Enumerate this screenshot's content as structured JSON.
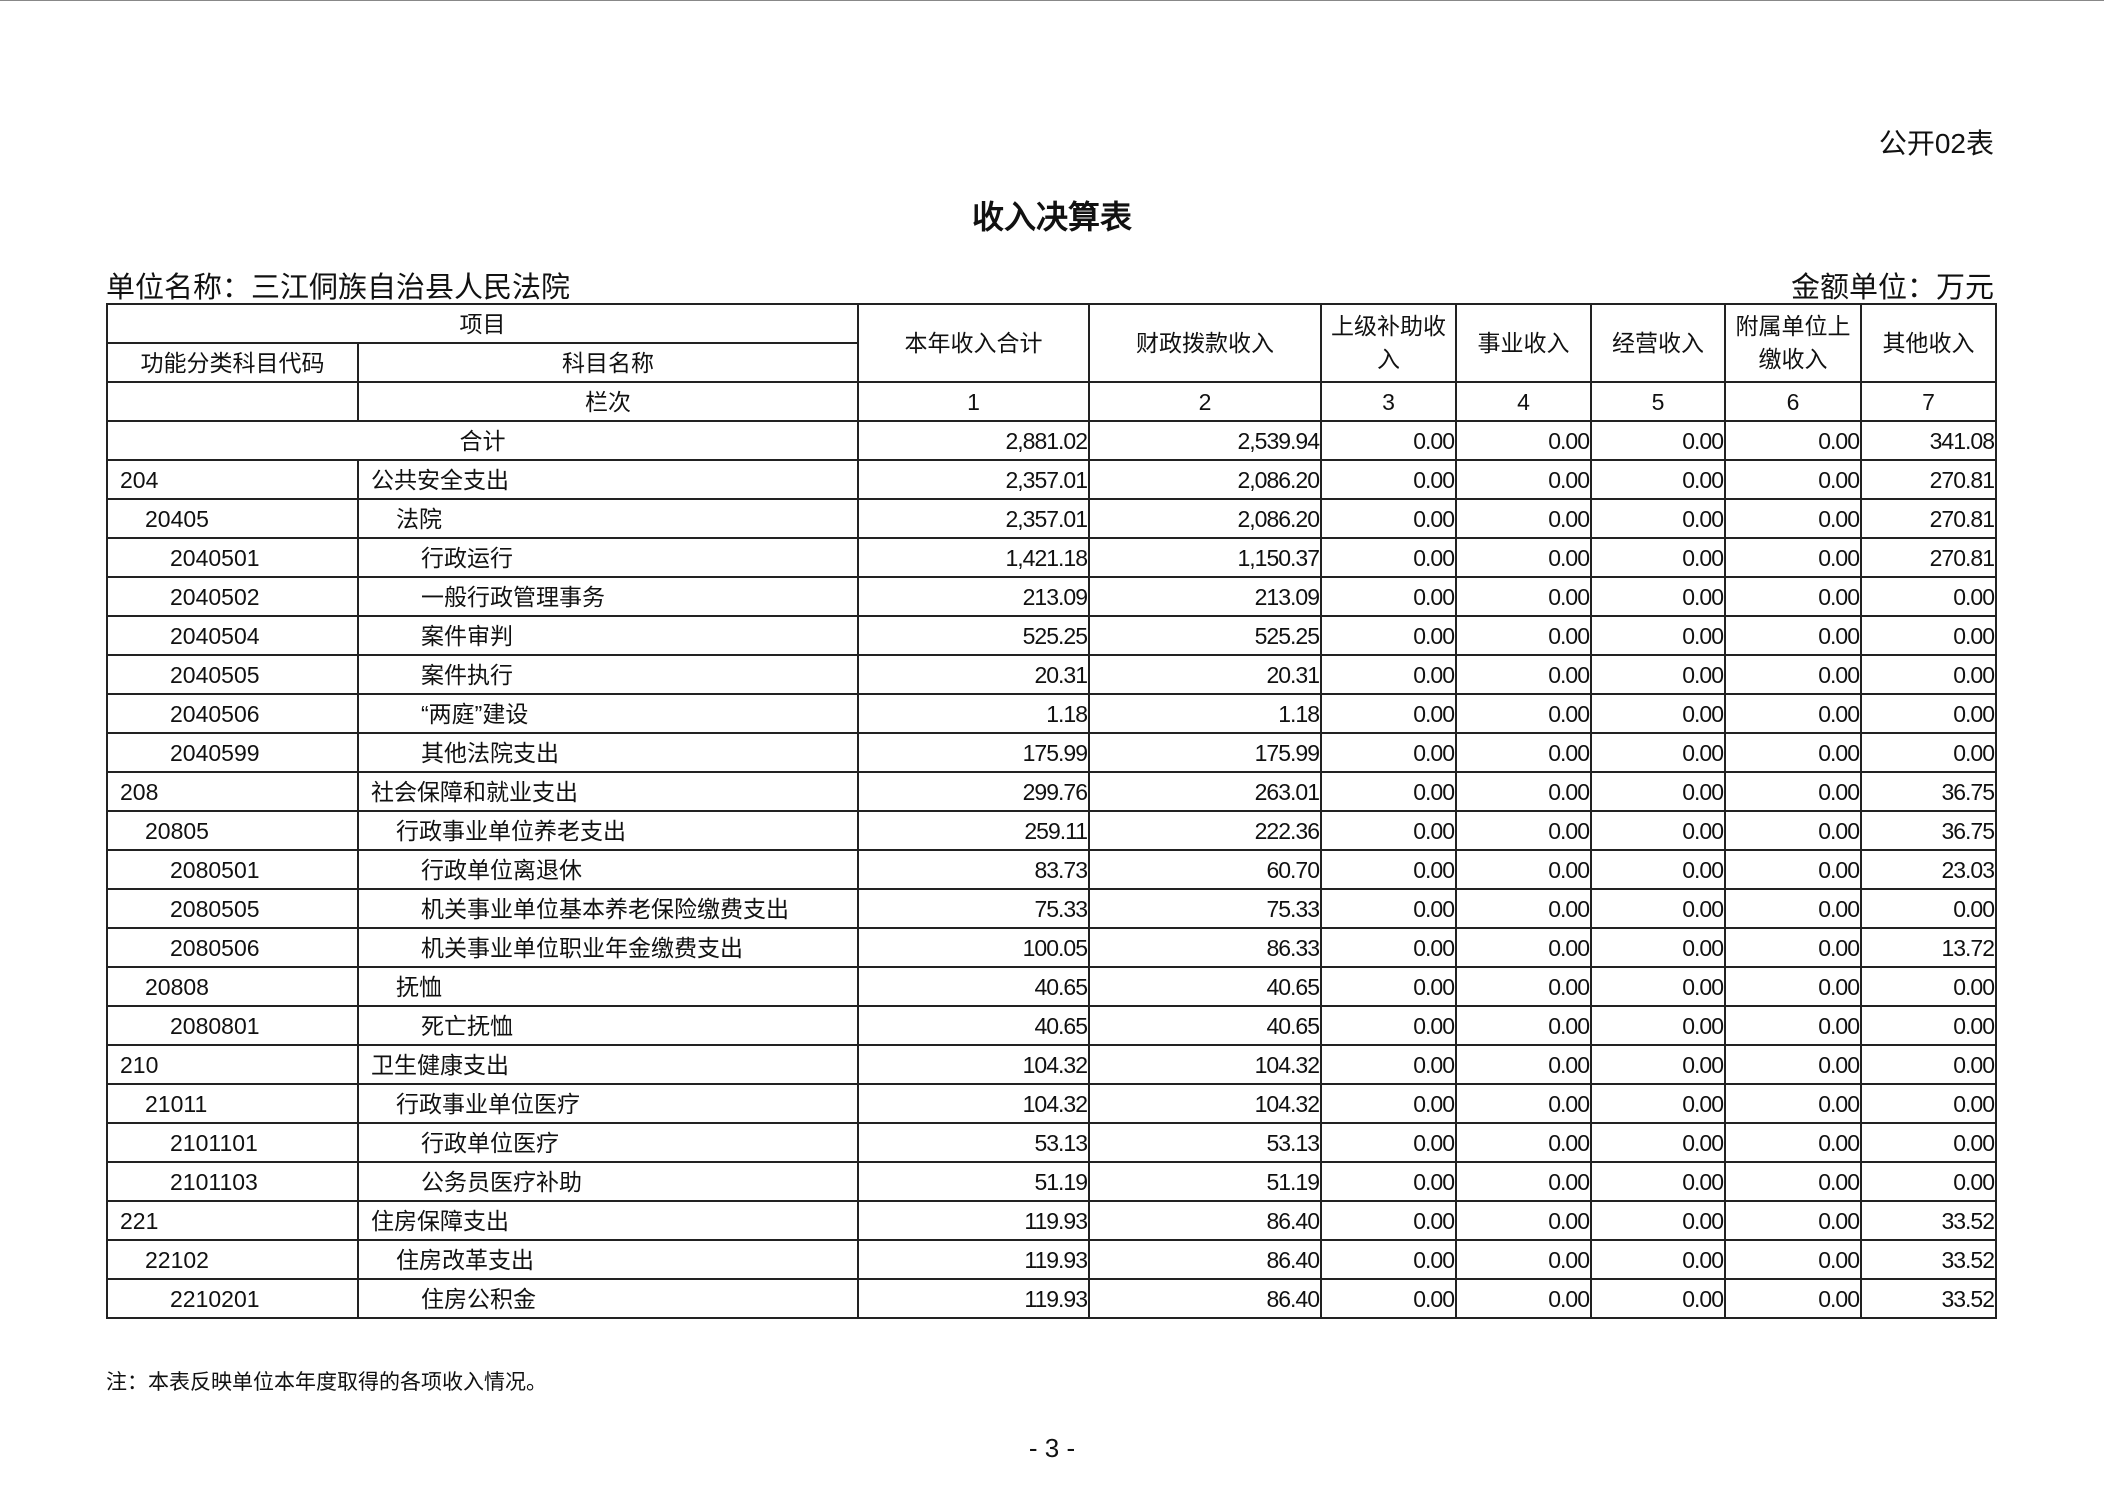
{
  "form_number": "公开02表",
  "title": "收入决算表",
  "unit_name": "单位名称：三江侗族自治县人民法院",
  "money_unit": "金额单位：万元",
  "header": {
    "item": "项目",
    "code": "功能分类科目代码",
    "name": "科目名称",
    "column_order": "栏次",
    "columns": [
      "本年收入合计",
      "财政拨款收入",
      "上级补助收入",
      "事业收入",
      "经营收入",
      "附属单位上缴收入",
      "其他收入"
    ],
    "column_numbers": [
      "1",
      "2",
      "3",
      "4",
      "5",
      "6",
      "7"
    ]
  },
  "total": {
    "label": "合计",
    "values": [
      "2,881.02",
      "2,539.94",
      "0.00",
      "0.00",
      "0.00",
      "0.00",
      "341.08"
    ]
  },
  "rows": [
    {
      "code": "204",
      "name": "公共安全支出",
      "level": 0,
      "values": [
        "2,357.01",
        "2,086.20",
        "0.00",
        "0.00",
        "0.00",
        "0.00",
        "270.81"
      ]
    },
    {
      "code": "20405",
      "name": "法院",
      "level": 1,
      "values": [
        "2,357.01",
        "2,086.20",
        "0.00",
        "0.00",
        "0.00",
        "0.00",
        "270.81"
      ]
    },
    {
      "code": "2040501",
      "name": "行政运行",
      "level": 2,
      "values": [
        "1,421.18",
        "1,150.37",
        "0.00",
        "0.00",
        "0.00",
        "0.00",
        "270.81"
      ]
    },
    {
      "code": "2040502",
      "name": "一般行政管理事务",
      "level": 2,
      "values": [
        "213.09",
        "213.09",
        "0.00",
        "0.00",
        "0.00",
        "0.00",
        "0.00"
      ]
    },
    {
      "code": "2040504",
      "name": "案件审判",
      "level": 2,
      "values": [
        "525.25",
        "525.25",
        "0.00",
        "0.00",
        "0.00",
        "0.00",
        "0.00"
      ]
    },
    {
      "code": "2040505",
      "name": "案件执行",
      "level": 2,
      "values": [
        "20.31",
        "20.31",
        "0.00",
        "0.00",
        "0.00",
        "0.00",
        "0.00"
      ]
    },
    {
      "code": "2040506",
      "name": "“两庭”建设",
      "level": 2,
      "values": [
        "1.18",
        "1.18",
        "0.00",
        "0.00",
        "0.00",
        "0.00",
        "0.00"
      ]
    },
    {
      "code": "2040599",
      "name": "其他法院支出",
      "level": 2,
      "values": [
        "175.99",
        "175.99",
        "0.00",
        "0.00",
        "0.00",
        "0.00",
        "0.00"
      ]
    },
    {
      "code": "208",
      "name": "社会保障和就业支出",
      "level": 0,
      "values": [
        "299.76",
        "263.01",
        "0.00",
        "0.00",
        "0.00",
        "0.00",
        "36.75"
      ]
    },
    {
      "code": "20805",
      "name": "行政事业单位养老支出",
      "level": 1,
      "values": [
        "259.11",
        "222.36",
        "0.00",
        "0.00",
        "0.00",
        "0.00",
        "36.75"
      ]
    },
    {
      "code": "2080501",
      "name": "行政单位离退休",
      "level": 2,
      "values": [
        "83.73",
        "60.70",
        "0.00",
        "0.00",
        "0.00",
        "0.00",
        "23.03"
      ]
    },
    {
      "code": "2080505",
      "name": "机关事业单位基本养老保险缴费支出",
      "level": 2,
      "values": [
        "75.33",
        "75.33",
        "0.00",
        "0.00",
        "0.00",
        "0.00",
        "0.00"
      ]
    },
    {
      "code": "2080506",
      "name": "机关事业单位职业年金缴费支出",
      "level": 2,
      "values": [
        "100.05",
        "86.33",
        "0.00",
        "0.00",
        "0.00",
        "0.00",
        "13.72"
      ]
    },
    {
      "code": "20808",
      "name": "抚恤",
      "level": 1,
      "values": [
        "40.65",
        "40.65",
        "0.00",
        "0.00",
        "0.00",
        "0.00",
        "0.00"
      ]
    },
    {
      "code": "2080801",
      "name": "死亡抚恤",
      "level": 2,
      "values": [
        "40.65",
        "40.65",
        "0.00",
        "0.00",
        "0.00",
        "0.00",
        "0.00"
      ]
    },
    {
      "code": "210",
      "name": "卫生健康支出",
      "level": 0,
      "values": [
        "104.32",
        "104.32",
        "0.00",
        "0.00",
        "0.00",
        "0.00",
        "0.00"
      ]
    },
    {
      "code": "21011",
      "name": "行政事业单位医疗",
      "level": 1,
      "values": [
        "104.32",
        "104.32",
        "0.00",
        "0.00",
        "0.00",
        "0.00",
        "0.00"
      ]
    },
    {
      "code": "2101101",
      "name": "行政单位医疗",
      "level": 2,
      "values": [
        "53.13",
        "53.13",
        "0.00",
        "0.00",
        "0.00",
        "0.00",
        "0.00"
      ]
    },
    {
      "code": "2101103",
      "name": "公务员医疗补助",
      "level": 2,
      "values": [
        "51.19",
        "51.19",
        "0.00",
        "0.00",
        "0.00",
        "0.00",
        "0.00"
      ]
    },
    {
      "code": "221",
      "name": "住房保障支出",
      "level": 0,
      "values": [
        "119.93",
        "86.40",
        "0.00",
        "0.00",
        "0.00",
        "0.00",
        "33.52"
      ]
    },
    {
      "code": "22102",
      "name": "住房改革支出",
      "level": 1,
      "values": [
        "119.93",
        "86.40",
        "0.00",
        "0.00",
        "0.00",
        "0.00",
        "33.52"
      ]
    },
    {
      "code": "2210201",
      "name": "住房公积金",
      "level": 2,
      "values": [
        "119.93",
        "86.40",
        "0.00",
        "0.00",
        "0.00",
        "0.00",
        "33.52"
      ]
    }
  ],
  "note": "注：本表反映单位本年度取得的各项收入情况。",
  "page_number": "- 3 -"
}
